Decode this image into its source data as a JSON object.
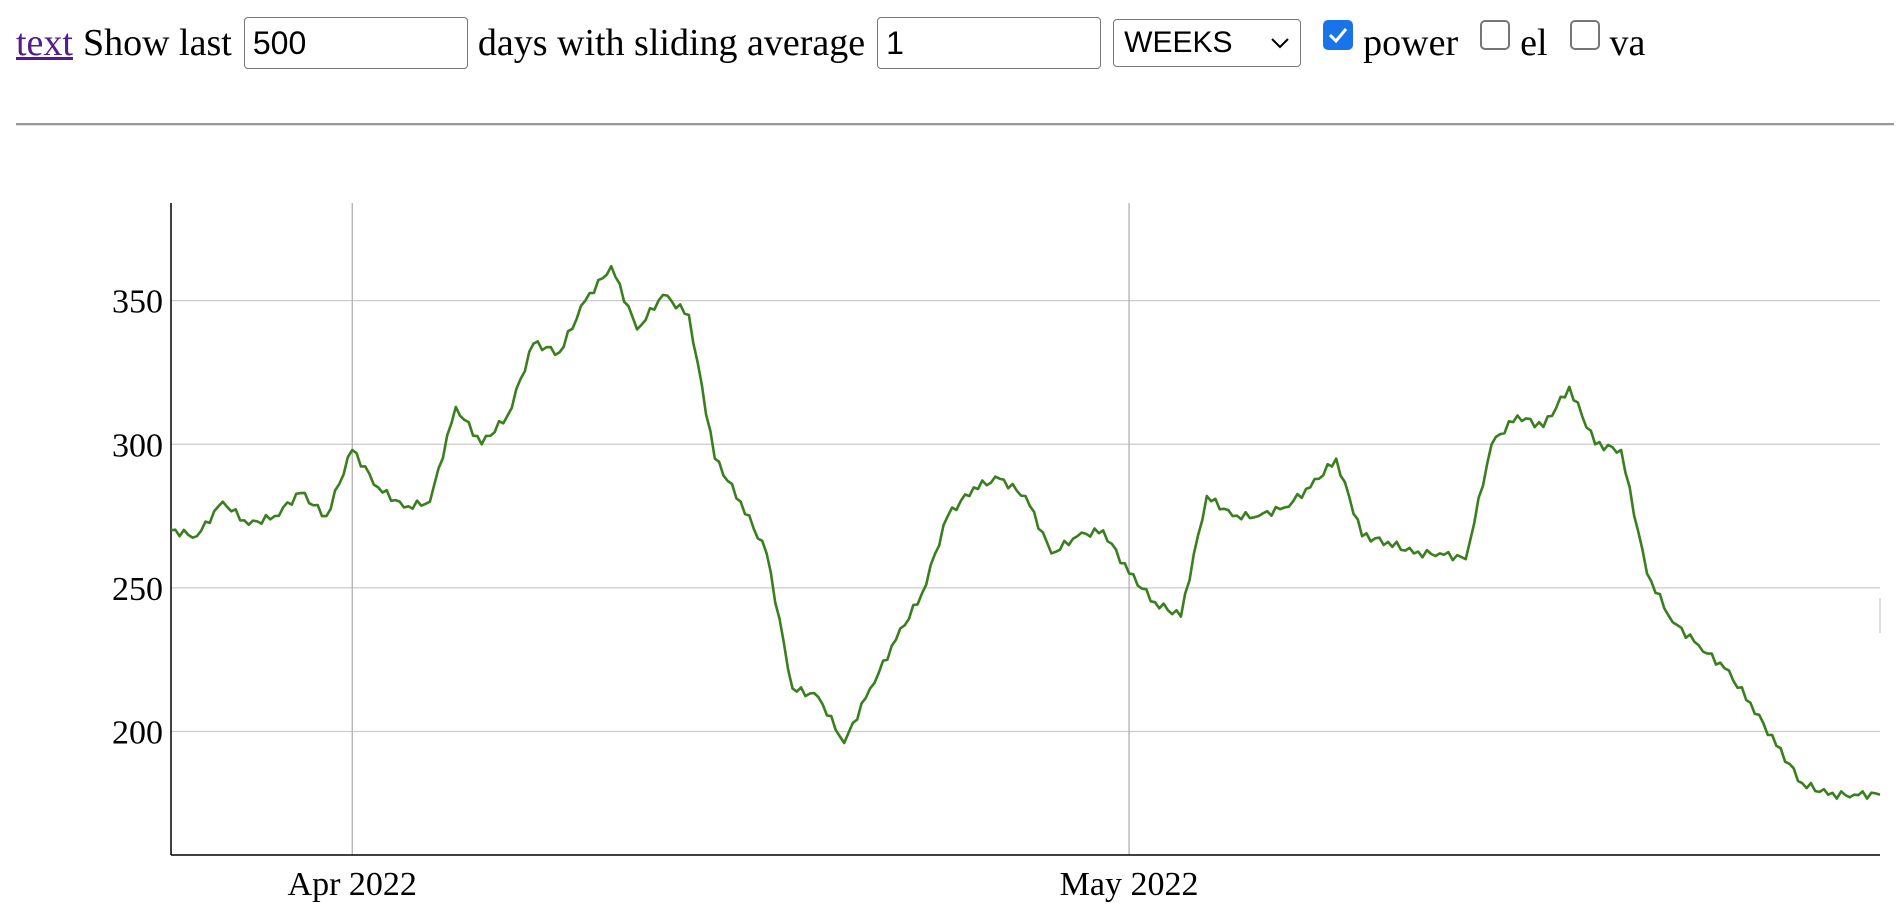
{
  "toolbar": {
    "link_text": "text",
    "show_last_label": "Show last",
    "days_value": "500",
    "days_with_label": "days with sliding average",
    "avg_value": "1",
    "unit_selected": "WEEKS",
    "checkboxes": [
      {
        "label": "power",
        "checked": true
      },
      {
        "label": "el",
        "checked": false
      },
      {
        "label": "va",
        "checked": false
      }
    ]
  },
  "colors": {
    "series_line": "#3a7f1e",
    "checkbox_accent": "#1a73e8",
    "link": "#551a8b",
    "grid": "#cccccc"
  },
  "chart_data": {
    "type": "line",
    "xlabel": "",
    "ylabel": "",
    "x_range": [
      "2022-03-25",
      "2022-05-30"
    ],
    "ylim": [
      157,
      384
    ],
    "y_ticks": [
      200,
      250,
      300,
      350
    ],
    "x_ticks": [
      {
        "date": "2022-04-01",
        "label": "Apr 2022"
      },
      {
        "date": "2022-05-01",
        "label": "May 2022"
      }
    ],
    "grid": true,
    "legend": "none",
    "series": [
      {
        "x": [
          "2022-03-25",
          "2022-03-26",
          "2022-03-27",
          "2022-03-28",
          "2022-03-29",
          "2022-03-30",
          "2022-03-31",
          "2022-04-01",
          "2022-04-02",
          "2022-04-03",
          "2022-04-04",
          "2022-04-05",
          "2022-04-06",
          "2022-04-07",
          "2022-04-08",
          "2022-04-09",
          "2022-04-10",
          "2022-04-11",
          "2022-04-12",
          "2022-04-13",
          "2022-04-14",
          "2022-04-15",
          "2022-04-16",
          "2022-04-17",
          "2022-04-18",
          "2022-04-19",
          "2022-04-20",
          "2022-04-21",
          "2022-04-22",
          "2022-04-23",
          "2022-04-24",
          "2022-04-25",
          "2022-04-26",
          "2022-04-27",
          "2022-04-28",
          "2022-04-29",
          "2022-04-30",
          "2022-05-01",
          "2022-05-02",
          "2022-05-03",
          "2022-05-04",
          "2022-05-05",
          "2022-05-06",
          "2022-05-07",
          "2022-05-08",
          "2022-05-09",
          "2022-05-10",
          "2022-05-11",
          "2022-05-12",
          "2022-05-13",
          "2022-05-14",
          "2022-05-15",
          "2022-05-16",
          "2022-05-17",
          "2022-05-18",
          "2022-05-19",
          "2022-05-20",
          "2022-05-21",
          "2022-05-22",
          "2022-05-23",
          "2022-05-24",
          "2022-05-25",
          "2022-05-26",
          "2022-05-27",
          "2022-05-28",
          "2022-05-29",
          "2022-05-30"
        ],
        "values": [
          270,
          268,
          280,
          272,
          275,
          283,
          275,
          298,
          285,
          278,
          280,
          313,
          300,
          310,
          335,
          332,
          350,
          362,
          340,
          352,
          345,
          295,
          280,
          262,
          215,
          212,
          196,
          215,
          232,
          248,
          275,
          285,
          288,
          282,
          262,
          268,
          270,
          255,
          245,
          240,
          282,
          275,
          275,
          278,
          285,
          295,
          268,
          266,
          262,
          262,
          260,
          300,
          310,
          306,
          320,
          300,
          298,
          255,
          238,
          230,
          222,
          210,
          195,
          182,
          178,
          178,
          178
        ]
      }
    ]
  }
}
